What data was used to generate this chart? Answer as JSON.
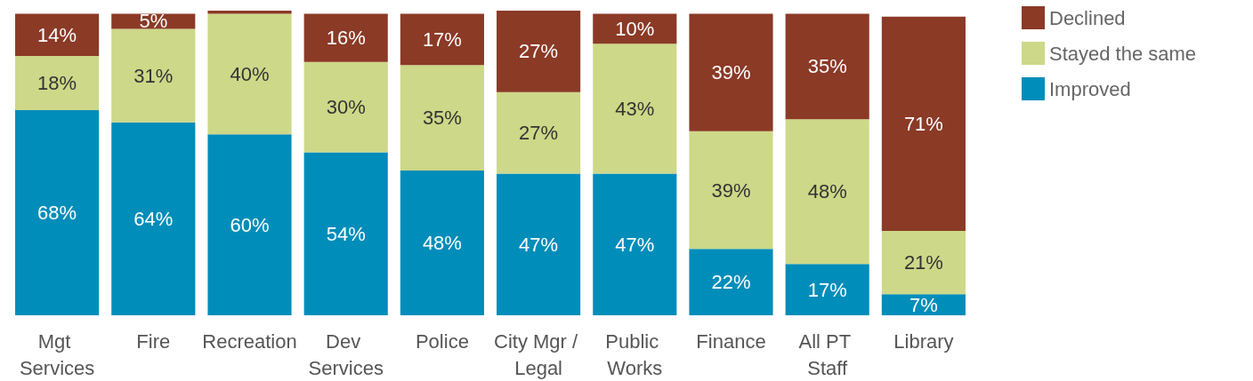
{
  "chart_data": {
    "type": "bar",
    "stacked": true,
    "legend": "top right",
    "grid": false,
    "tick_labels": "x",
    "categories": [
      "Mgt Services",
      "Fire",
      "Recreation",
      "Dev Services",
      "Police",
      "City Mgr / Legal",
      "Public Works",
      "Finance",
      "All PT Staff",
      "Library"
    ],
    "series": [
      {
        "name": "Improved",
        "color": "#008dba",
        "values": [
          68,
          64,
          60,
          54,
          48,
          47,
          47,
          22,
          17,
          7
        ],
        "value_labels": [
          "68%",
          "64%",
          "60%",
          "54%",
          "48%",
          "47%",
          "47%",
          "22%",
          "17%",
          "7%"
        ]
      },
      {
        "name": "Stayed the same",
        "color": "#cdd888",
        "values": [
          18,
          31,
          40,
          30,
          35,
          27,
          43,
          39,
          48,
          21
        ],
        "value_labels": [
          "18%",
          "31%",
          "40%",
          "30%",
          "35%",
          "27%",
          "43%",
          "39%",
          "48%",
          "21%"
        ]
      },
      {
        "name": "Declined",
        "color": "#8b3a26",
        "values": [
          14,
          5,
          1,
          16,
          17,
          27,
          10,
          39,
          35,
          71
        ],
        "value_labels": [
          "14%",
          "5%",
          null,
          "16%",
          "17%",
          "27%",
          "10%",
          "39%",
          "35%",
          "71%"
        ]
      }
    ]
  }
}
